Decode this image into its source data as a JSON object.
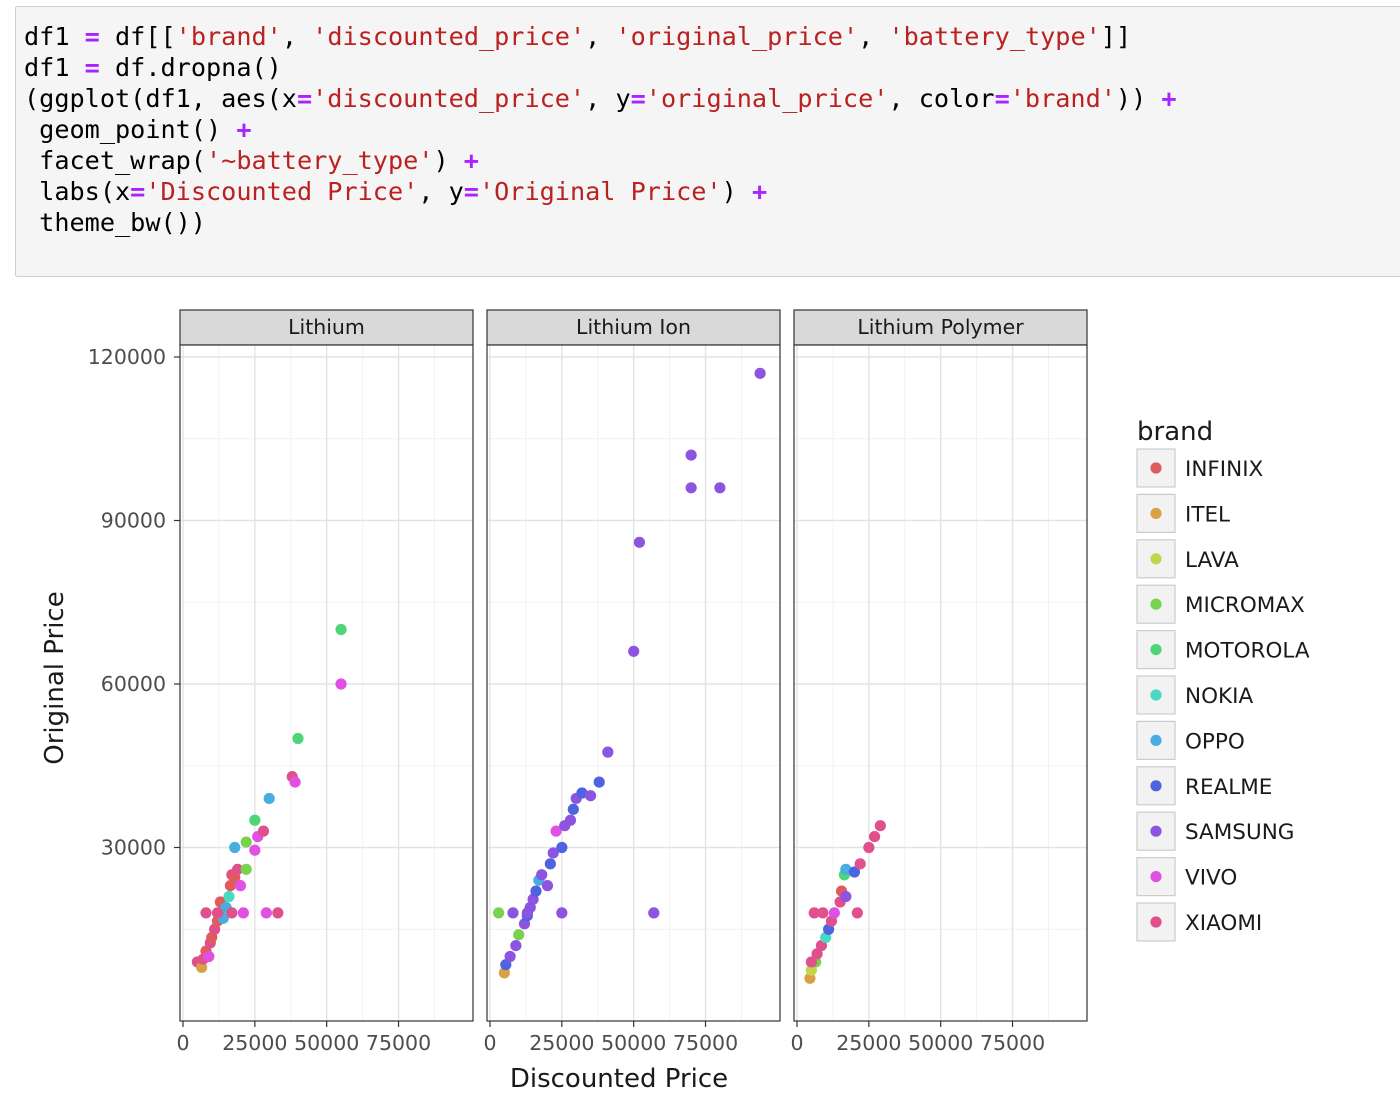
{
  "code_cell": {
    "lines": [
      [
        {
          "t": "df1 "
        },
        {
          "t": "=",
          "c": "o"
        },
        {
          "t": " df[["
        },
        {
          "t": "'brand'",
          "c": "s"
        },
        {
          "t": ", "
        },
        {
          "t": "'discounted_price'",
          "c": "s"
        },
        {
          "t": ", "
        },
        {
          "t": "'original_price'",
          "c": "s"
        },
        {
          "t": ", "
        },
        {
          "t": "'battery_type'",
          "c": "s"
        },
        {
          "t": "]]"
        }
      ],
      [
        {
          "t": "df1 "
        },
        {
          "t": "=",
          "c": "o"
        },
        {
          "t": " df.dropna()"
        }
      ],
      [
        {
          "t": "(ggplot(df1, aes(x"
        },
        {
          "t": "=",
          "c": "o"
        },
        {
          "t": "'discounted_price'",
          "c": "s"
        },
        {
          "t": ", y"
        },
        {
          "t": "=",
          "c": "o"
        },
        {
          "t": "'original_price'",
          "c": "s"
        },
        {
          "t": ", color"
        },
        {
          "t": "=",
          "c": "o"
        },
        {
          "t": "'brand'",
          "c": "s"
        },
        {
          "t": ")) "
        },
        {
          "t": "+",
          "c": "o"
        }
      ],
      [
        {
          "t": " geom_point() "
        },
        {
          "t": "+",
          "c": "o"
        }
      ],
      [
        {
          "t": " facet_wrap("
        },
        {
          "t": "'~battery_type'",
          "c": "s"
        },
        {
          "t": ") "
        },
        {
          "t": "+",
          "c": "o"
        }
      ],
      [
        {
          "t": " labs(x"
        },
        {
          "t": "=",
          "c": "o"
        },
        {
          "t": "'Discounted Price'",
          "c": "s"
        },
        {
          "t": ", y"
        },
        {
          "t": "=",
          "c": "o"
        },
        {
          "t": "'Original Price'",
          "c": "s"
        },
        {
          "t": ") "
        },
        {
          "t": "+",
          "c": "o"
        }
      ],
      [
        {
          "t": " theme_bw())"
        }
      ]
    ]
  },
  "chart_data": {
    "type": "scatter",
    "xlabel": "Discounted Price",
    "ylabel": "Original Price",
    "xlim": [
      0,
      95000
    ],
    "ylim": [
      0,
      120000
    ],
    "x_ticks": [
      0,
      25000,
      50000,
      75000
    ],
    "x_tick_labels": [
      "0",
      "25000",
      "50000",
      "75000"
    ],
    "y_ticks": [
      30000,
      60000,
      90000,
      120000
    ],
    "y_tick_labels": [
      "30000",
      "60000",
      "90000",
      "120000"
    ],
    "facets": [
      "Lithium",
      "Lithium Ion",
      "Lithium Polymer"
    ],
    "legend_title": "brand",
    "legend_position": "right",
    "brands": [
      {
        "name": "INFINIX",
        "color": "#e05c5c"
      },
      {
        "name": "ITEL",
        "color": "#d9a146"
      },
      {
        "name": "LAVA",
        "color": "#c3d64a"
      },
      {
        "name": "MICROMAX",
        "color": "#79d24e"
      },
      {
        "name": "MOTOROLA",
        "color": "#4ed575"
      },
      {
        "name": "NOKIA",
        "color": "#48d9c2"
      },
      {
        "name": "OPPO",
        "color": "#49ade0"
      },
      {
        "name": "REALME",
        "color": "#4d63e0"
      },
      {
        "name": "SAMSUNG",
        "color": "#8d54e2"
      },
      {
        "name": "VIVO",
        "color": "#e050e3"
      },
      {
        "name": "XIAOMI",
        "color": "#e0508c"
      }
    ],
    "points": [
      {
        "f": 0,
        "b": "XIAOMI",
        "x": 5000,
        "y": 9000
      },
      {
        "f": 0,
        "b": "ITEL",
        "x": 6500,
        "y": 8000
      },
      {
        "f": 0,
        "b": "XIAOMI",
        "x": 7000,
        "y": 9500
      },
      {
        "f": 0,
        "b": "INFINIX",
        "x": 8000,
        "y": 11000
      },
      {
        "f": 0,
        "b": "VIVO",
        "x": 9000,
        "y": 10000
      },
      {
        "f": 0,
        "b": "XIAOMI",
        "x": 9500,
        "y": 12500
      },
      {
        "f": 0,
        "b": "INFINIX",
        "x": 10000,
        "y": 13500
      },
      {
        "f": 0,
        "b": "XIAOMI",
        "x": 11000,
        "y": 15000
      },
      {
        "f": 0,
        "b": "INFINIX",
        "x": 12000,
        "y": 16500
      },
      {
        "f": 0,
        "b": "XIAOMI",
        "x": 12500,
        "y": 18000
      },
      {
        "f": 0,
        "b": "INFINIX",
        "x": 13000,
        "y": 20000
      },
      {
        "f": 0,
        "b": "OPPO",
        "x": 14000,
        "y": 17000
      },
      {
        "f": 0,
        "b": "OPPO",
        "x": 15000,
        "y": 19000
      },
      {
        "f": 0,
        "b": "NOKIA",
        "x": 16000,
        "y": 21000
      },
      {
        "f": 0,
        "b": "INFINIX",
        "x": 16500,
        "y": 23000
      },
      {
        "f": 0,
        "b": "XIAOMI",
        "x": 17000,
        "y": 25000
      },
      {
        "f": 0,
        "b": "INFINIX",
        "x": 18000,
        "y": 24500
      },
      {
        "f": 0,
        "b": "XIAOMI",
        "x": 19000,
        "y": 26000
      },
      {
        "f": 0,
        "b": "VIVO",
        "x": 20000,
        "y": 23000
      },
      {
        "f": 0,
        "b": "XIAOMI",
        "x": 8000,
        "y": 18000
      },
      {
        "f": 0,
        "b": "XIAOMI",
        "x": 12000,
        "y": 18000
      },
      {
        "f": 0,
        "b": "XIAOMI",
        "x": 17000,
        "y": 18000
      },
      {
        "f": 0,
        "b": "VIVO",
        "x": 21000,
        "y": 18000
      },
      {
        "f": 0,
        "b": "MICROMAX",
        "x": 22000,
        "y": 26000
      },
      {
        "f": 0,
        "b": "OPPO",
        "x": 18000,
        "y": 30000
      },
      {
        "f": 0,
        "b": "MICROMAX",
        "x": 22000,
        "y": 31000
      },
      {
        "f": 0,
        "b": "MOTOROLA",
        "x": 25000,
        "y": 35000
      },
      {
        "f": 0,
        "b": "VIVO",
        "x": 25000,
        "y": 29500
      },
      {
        "f": 0,
        "b": "VIVO",
        "x": 26000,
        "y": 32000
      },
      {
        "f": 0,
        "b": "XIAOMI",
        "x": 28000,
        "y": 33000
      },
      {
        "f": 0,
        "b": "VIVO",
        "x": 29000,
        "y": 18000
      },
      {
        "f": 0,
        "b": "XIAOMI",
        "x": 33000,
        "y": 18000
      },
      {
        "f": 0,
        "b": "OPPO",
        "x": 30000,
        "y": 39000
      },
      {
        "f": 0,
        "b": "MOTOROLA",
        "x": 40000,
        "y": 50000
      },
      {
        "f": 0,
        "b": "XIAOMI",
        "x": 38000,
        "y": 43000
      },
      {
        "f": 0,
        "b": "VIVO",
        "x": 39000,
        "y": 42000
      },
      {
        "f": 0,
        "b": "MOTOROLA",
        "x": 55000,
        "y": 70000
      },
      {
        "f": 0,
        "b": "VIVO",
        "x": 55000,
        "y": 60000
      },
      {
        "f": 1,
        "b": "ITEL",
        "x": 5000,
        "y": 7000
      },
      {
        "f": 1,
        "b": "REALME",
        "x": 5500,
        "y": 8500
      },
      {
        "f": 1,
        "b": "SAMSUNG",
        "x": 7000,
        "y": 10000
      },
      {
        "f": 1,
        "b": "SAMSUNG",
        "x": 9000,
        "y": 12000
      },
      {
        "f": 1,
        "b": "MICROMAX",
        "x": 10000,
        "y": 14000
      },
      {
        "f": 1,
        "b": "SAMSUNG",
        "x": 12000,
        "y": 16000
      },
      {
        "f": 1,
        "b": "REALME",
        "x": 13000,
        "y": 17500
      },
      {
        "f": 1,
        "b": "SAMSUNG",
        "x": 14000,
        "y": 19000
      },
      {
        "f": 1,
        "b": "SAMSUNG",
        "x": 15000,
        "y": 20500
      },
      {
        "f": 1,
        "b": "REALME",
        "x": 16000,
        "y": 22000
      },
      {
        "f": 1,
        "b": "OPPO",
        "x": 17000,
        "y": 24000
      },
      {
        "f": 1,
        "b": "SAMSUNG",
        "x": 18000,
        "y": 25000
      },
      {
        "f": 1,
        "b": "SAMSUNG",
        "x": 20000,
        "y": 23000
      },
      {
        "f": 1,
        "b": "REALME",
        "x": 21000,
        "y": 27000
      },
      {
        "f": 1,
        "b": "SAMSUNG",
        "x": 22000,
        "y": 29000
      },
      {
        "f": 1,
        "b": "VIVO",
        "x": 23000,
        "y": 33000
      },
      {
        "f": 1,
        "b": "REALME",
        "x": 25000,
        "y": 30000
      },
      {
        "f": 1,
        "b": "SAMSUNG",
        "x": 26000,
        "y": 34000
      },
      {
        "f": 1,
        "b": "SAMSUNG",
        "x": 28000,
        "y": 35000
      },
      {
        "f": 1,
        "b": "REALME",
        "x": 29000,
        "y": 37000
      },
      {
        "f": 1,
        "b": "SAMSUNG",
        "x": 30000,
        "y": 39000
      },
      {
        "f": 1,
        "b": "REALME",
        "x": 32000,
        "y": 40000
      },
      {
        "f": 1,
        "b": "SAMSUNG",
        "x": 35000,
        "y": 39500
      },
      {
        "f": 1,
        "b": "REALME",
        "x": 38000,
        "y": 42000
      },
      {
        "f": 1,
        "b": "SAMSUNG",
        "x": 41000,
        "y": 47500
      },
      {
        "f": 1,
        "b": "MICROMAX",
        "x": 3000,
        "y": 18000
      },
      {
        "f": 1,
        "b": "SAMSUNG",
        "x": 8000,
        "y": 18000
      },
      {
        "f": 1,
        "b": "SAMSUNG",
        "x": 13000,
        "y": 18000
      },
      {
        "f": 1,
        "b": "SAMSUNG",
        "x": 25000,
        "y": 18000
      },
      {
        "f": 1,
        "b": "SAMSUNG",
        "x": 57000,
        "y": 18000
      },
      {
        "f": 1,
        "b": "SAMSUNG",
        "x": 50000,
        "y": 66000
      },
      {
        "f": 1,
        "b": "SAMSUNG",
        "x": 52000,
        "y": 86000
      },
      {
        "f": 1,
        "b": "SAMSUNG",
        "x": 70000,
        "y": 96000
      },
      {
        "f": 1,
        "b": "SAMSUNG",
        "x": 80000,
        "y": 96000
      },
      {
        "f": 1,
        "b": "SAMSUNG",
        "x": 70000,
        "y": 102000
      },
      {
        "f": 1,
        "b": "SAMSUNG",
        "x": 94000,
        "y": 117000
      },
      {
        "f": 2,
        "b": "ITEL",
        "x": 4500,
        "y": 6000
      },
      {
        "f": 2,
        "b": "LAVA",
        "x": 5000,
        "y": 7500
      },
      {
        "f": 2,
        "b": "MICROMAX",
        "x": 6500,
        "y": 9000
      },
      {
        "f": 2,
        "b": "XIAOMI",
        "x": 7000,
        "y": 10500
      },
      {
        "f": 2,
        "b": "XIAOMI",
        "x": 8500,
        "y": 12000
      },
      {
        "f": 2,
        "b": "NOKIA",
        "x": 10000,
        "y": 13500
      },
      {
        "f": 2,
        "b": "REALME",
        "x": 11000,
        "y": 15000
      },
      {
        "f": 2,
        "b": "XIAOMI",
        "x": 12000,
        "y": 16500
      },
      {
        "f": 2,
        "b": "XIAOMI",
        "x": 6000,
        "y": 18000
      },
      {
        "f": 2,
        "b": "XIAOMI",
        "x": 9000,
        "y": 18000
      },
      {
        "f": 2,
        "b": "VIVO",
        "x": 13000,
        "y": 18000
      },
      {
        "f": 2,
        "b": "XIAOMI",
        "x": 15000,
        "y": 20000
      },
      {
        "f": 2,
        "b": "INFINIX",
        "x": 15500,
        "y": 22000
      },
      {
        "f": 2,
        "b": "SAMSUNG",
        "x": 17000,
        "y": 21000
      },
      {
        "f": 2,
        "b": "MOTOROLA",
        "x": 16500,
        "y": 25000
      },
      {
        "f": 2,
        "b": "OPPO",
        "x": 17000,
        "y": 26000
      },
      {
        "f": 2,
        "b": "REALME",
        "x": 20000,
        "y": 25500
      },
      {
        "f": 2,
        "b": "XIAOMI",
        "x": 22000,
        "y": 27000
      },
      {
        "f": 2,
        "b": "XIAOMI",
        "x": 25000,
        "y": 30000
      },
      {
        "f": 2,
        "b": "XIAOMI",
        "x": 27000,
        "y": 32000
      },
      {
        "f": 2,
        "b": "XIAOMI",
        "x": 29000,
        "y": 34000
      },
      {
        "f": 2,
        "b": "XIAOMI",
        "x": 21000,
        "y": 18000
      },
      {
        "f": 2,
        "b": "XIAOMI",
        "x": 5000,
        "y": 9000
      }
    ]
  }
}
